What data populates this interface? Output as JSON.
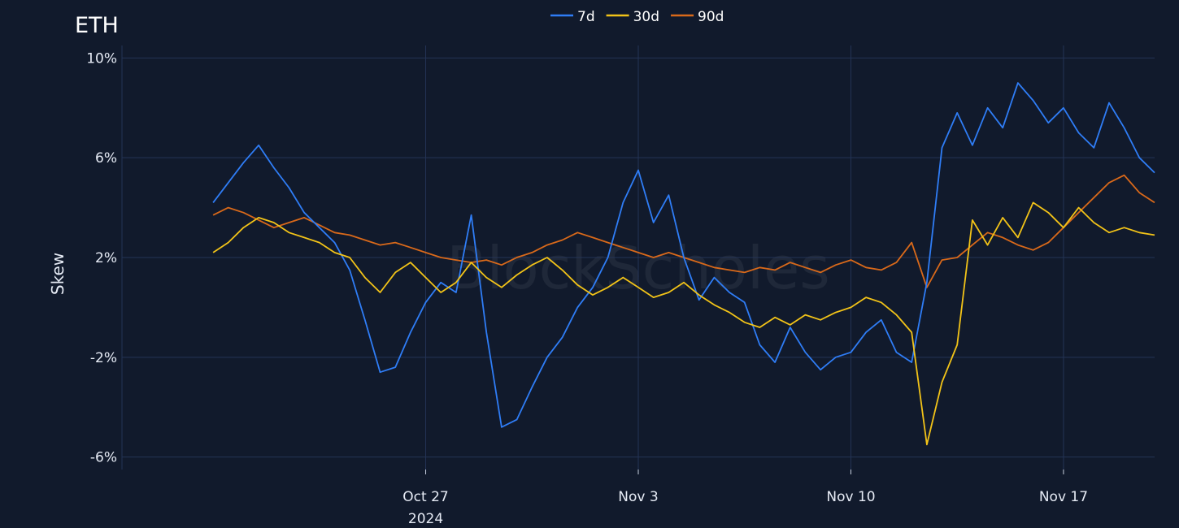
{
  "chart_data": {
    "type": "line",
    "title": "ETH",
    "ylabel": "Skew",
    "xlabel": "",
    "watermark": "BlockScholes",
    "x_range": [
      "2024-10-17",
      "2024-11-20"
    ],
    "ylim": [
      -6.5,
      10.5
    ],
    "y_ticks": [
      -6,
      -2,
      2,
      6,
      10
    ],
    "y_tick_labels": [
      "-6%",
      "-2%",
      "2%",
      "6%",
      "10%"
    ],
    "x_ticks": [
      "2024-10-27",
      "2024-11-03",
      "2024-11-10",
      "2024-11-17"
    ],
    "x_tick_labels": [
      "Oct 27",
      "Nov 3",
      "Nov 10",
      "Nov 17"
    ],
    "x_tick_year": "2024",
    "grid": true,
    "legend_position": "top-center",
    "colors": {
      "background": "#111a2c",
      "grid": "#243456"
    },
    "series": [
      {
        "name": "7d",
        "color": "#2f7df6",
        "points": [
          [
            "2024-10-20",
            4.2
          ],
          [
            "2024-10-20T12:00",
            5.0
          ],
          [
            "2024-10-21",
            5.8
          ],
          [
            "2024-10-21T12:00",
            6.5
          ],
          [
            "2024-10-22",
            5.6
          ],
          [
            "2024-10-22T12:00",
            4.8
          ],
          [
            "2024-10-23",
            3.8
          ],
          [
            "2024-10-23T12:00",
            3.2
          ],
          [
            "2024-10-24",
            2.6
          ],
          [
            "2024-10-24T12:00",
            1.5
          ],
          [
            "2024-10-25",
            -0.5
          ],
          [
            "2024-10-25T12:00",
            -2.6
          ],
          [
            "2024-10-26",
            -2.4
          ],
          [
            "2024-10-26T12:00",
            -1.0
          ],
          [
            "2024-10-27",
            0.2
          ],
          [
            "2024-10-27T12:00",
            1.0
          ],
          [
            "2024-10-28",
            0.6
          ],
          [
            "2024-10-28T12:00",
            3.7
          ],
          [
            "2024-10-29",
            -1.0
          ],
          [
            "2024-10-29T12:00",
            -4.8
          ],
          [
            "2024-10-30",
            -4.5
          ],
          [
            "2024-10-30T12:00",
            -3.2
          ],
          [
            "2024-10-31",
            -2.0
          ],
          [
            "2024-10-31T12:00",
            -1.2
          ],
          [
            "2024-11-01",
            0.0
          ],
          [
            "2024-11-01T12:00",
            0.8
          ],
          [
            "2024-11-02",
            2.0
          ],
          [
            "2024-11-02T12:00",
            4.2
          ],
          [
            "2024-11-03",
            5.5
          ],
          [
            "2024-11-03T12:00",
            3.4
          ],
          [
            "2024-11-04",
            4.5
          ],
          [
            "2024-11-04T12:00",
            2.0
          ],
          [
            "2024-11-05",
            0.3
          ],
          [
            "2024-11-05T12:00",
            1.2
          ],
          [
            "2024-11-06",
            0.6
          ],
          [
            "2024-11-06T12:00",
            0.2
          ],
          [
            "2024-11-07",
            -1.5
          ],
          [
            "2024-11-07T12:00",
            -2.2
          ],
          [
            "2024-11-08",
            -0.8
          ],
          [
            "2024-11-08T12:00",
            -1.8
          ],
          [
            "2024-11-09",
            -2.5
          ],
          [
            "2024-11-09T12:00",
            -2.0
          ],
          [
            "2024-11-10",
            -1.8
          ],
          [
            "2024-11-10T12:00",
            -1.0
          ],
          [
            "2024-11-11",
            -0.5
          ],
          [
            "2024-11-11T12:00",
            -1.8
          ],
          [
            "2024-11-12",
            -2.2
          ],
          [
            "2024-11-12T12:00",
            1.0
          ],
          [
            "2024-11-13",
            6.4
          ],
          [
            "2024-11-13T12:00",
            7.8
          ],
          [
            "2024-11-14",
            6.5
          ],
          [
            "2024-11-14T12:00",
            8.0
          ],
          [
            "2024-11-15",
            7.2
          ],
          [
            "2024-11-15T12:00",
            9.0
          ],
          [
            "2024-11-16",
            8.3
          ],
          [
            "2024-11-16T12:00",
            7.4
          ],
          [
            "2024-11-17",
            8.0
          ],
          [
            "2024-11-17T12:00",
            7.0
          ],
          [
            "2024-11-18",
            6.4
          ],
          [
            "2024-11-18T12:00",
            8.2
          ],
          [
            "2024-11-19",
            7.2
          ],
          [
            "2024-11-19T12:00",
            6.0
          ],
          [
            "2024-11-20",
            5.4
          ]
        ]
      },
      {
        "name": "30d",
        "color": "#f2c318",
        "points": [
          [
            "2024-10-20",
            2.2
          ],
          [
            "2024-10-20T12:00",
            2.6
          ],
          [
            "2024-10-21",
            3.2
          ],
          [
            "2024-10-21T12:00",
            3.6
          ],
          [
            "2024-10-22",
            3.4
          ],
          [
            "2024-10-22T12:00",
            3.0
          ],
          [
            "2024-10-23",
            2.8
          ],
          [
            "2024-10-23T12:00",
            2.6
          ],
          [
            "2024-10-24",
            2.2
          ],
          [
            "2024-10-24T12:00",
            2.0
          ],
          [
            "2024-10-25",
            1.2
          ],
          [
            "2024-10-25T12:00",
            0.6
          ],
          [
            "2024-10-26",
            1.4
          ],
          [
            "2024-10-26T12:00",
            1.8
          ],
          [
            "2024-10-27",
            1.2
          ],
          [
            "2024-10-27T12:00",
            0.6
          ],
          [
            "2024-10-28",
            1.0
          ],
          [
            "2024-10-28T12:00",
            1.8
          ],
          [
            "2024-10-29",
            1.2
          ],
          [
            "2024-10-29T12:00",
            0.8
          ],
          [
            "2024-10-30",
            1.3
          ],
          [
            "2024-10-30T12:00",
            1.7
          ],
          [
            "2024-10-31",
            2.0
          ],
          [
            "2024-10-31T12:00",
            1.5
          ],
          [
            "2024-11-01",
            0.9
          ],
          [
            "2024-11-01T12:00",
            0.5
          ],
          [
            "2024-11-02",
            0.8
          ],
          [
            "2024-11-02T12:00",
            1.2
          ],
          [
            "2024-11-03",
            0.8
          ],
          [
            "2024-11-03T12:00",
            0.4
          ],
          [
            "2024-11-04",
            0.6
          ],
          [
            "2024-11-04T12:00",
            1.0
          ],
          [
            "2024-11-05",
            0.5
          ],
          [
            "2024-11-05T12:00",
            0.1
          ],
          [
            "2024-11-06",
            -0.2
          ],
          [
            "2024-11-06T12:00",
            -0.6
          ],
          [
            "2024-11-07",
            -0.8
          ],
          [
            "2024-11-07T12:00",
            -0.4
          ],
          [
            "2024-11-08",
            -0.7
          ],
          [
            "2024-11-08T12:00",
            -0.3
          ],
          [
            "2024-11-09",
            -0.5
          ],
          [
            "2024-11-09T12:00",
            -0.2
          ],
          [
            "2024-11-10",
            0.0
          ],
          [
            "2024-11-10T12:00",
            0.4
          ],
          [
            "2024-11-11",
            0.2
          ],
          [
            "2024-11-11T12:00",
            -0.3
          ],
          [
            "2024-11-12",
            -1.0
          ],
          [
            "2024-11-12T12:00",
            -5.5
          ],
          [
            "2024-11-13",
            -3.0
          ],
          [
            "2024-11-13T12:00",
            -1.5
          ],
          [
            "2024-11-14",
            3.5
          ],
          [
            "2024-11-14T12:00",
            2.5
          ],
          [
            "2024-11-15",
            3.6
          ],
          [
            "2024-11-15T12:00",
            2.8
          ],
          [
            "2024-11-16",
            4.2
          ],
          [
            "2024-11-16T12:00",
            3.8
          ],
          [
            "2024-11-17",
            3.2
          ],
          [
            "2024-11-17T12:00",
            4.0
          ],
          [
            "2024-11-18",
            3.4
          ],
          [
            "2024-11-18T12:00",
            3.0
          ],
          [
            "2024-11-19",
            3.2
          ],
          [
            "2024-11-19T12:00",
            3.0
          ],
          [
            "2024-11-20",
            2.9
          ]
        ]
      },
      {
        "name": "90d",
        "color": "#d9691a",
        "points": [
          [
            "2024-10-20",
            3.7
          ],
          [
            "2024-10-20T12:00",
            4.0
          ],
          [
            "2024-10-21",
            3.8
          ],
          [
            "2024-10-21T12:00",
            3.5
          ],
          [
            "2024-10-22",
            3.2
          ],
          [
            "2024-10-22T12:00",
            3.4
          ],
          [
            "2024-10-23",
            3.6
          ],
          [
            "2024-10-23T12:00",
            3.3
          ],
          [
            "2024-10-24",
            3.0
          ],
          [
            "2024-10-24T12:00",
            2.9
          ],
          [
            "2024-10-25",
            2.7
          ],
          [
            "2024-10-25T12:00",
            2.5
          ],
          [
            "2024-10-26",
            2.6
          ],
          [
            "2024-10-26T12:00",
            2.4
          ],
          [
            "2024-10-27",
            2.2
          ],
          [
            "2024-10-27T12:00",
            2.0
          ],
          [
            "2024-10-28",
            1.9
          ],
          [
            "2024-10-28T12:00",
            1.8
          ],
          [
            "2024-10-29",
            1.9
          ],
          [
            "2024-10-29T12:00",
            1.7
          ],
          [
            "2024-10-30",
            2.0
          ],
          [
            "2024-10-30T12:00",
            2.2
          ],
          [
            "2024-10-31",
            2.5
          ],
          [
            "2024-10-31T12:00",
            2.7
          ],
          [
            "2024-11-01",
            3.0
          ],
          [
            "2024-11-01T12:00",
            2.8
          ],
          [
            "2024-11-02",
            2.6
          ],
          [
            "2024-11-02T12:00",
            2.4
          ],
          [
            "2024-11-03",
            2.2
          ],
          [
            "2024-11-03T12:00",
            2.0
          ],
          [
            "2024-11-04",
            2.2
          ],
          [
            "2024-11-04T12:00",
            2.0
          ],
          [
            "2024-11-05",
            1.8
          ],
          [
            "2024-11-05T12:00",
            1.6
          ],
          [
            "2024-11-06",
            1.5
          ],
          [
            "2024-11-06T12:00",
            1.4
          ],
          [
            "2024-11-07",
            1.6
          ],
          [
            "2024-11-07T12:00",
            1.5
          ],
          [
            "2024-11-08",
            1.8
          ],
          [
            "2024-11-08T12:00",
            1.6
          ],
          [
            "2024-11-09",
            1.4
          ],
          [
            "2024-11-09T12:00",
            1.7
          ],
          [
            "2024-11-10",
            1.9
          ],
          [
            "2024-11-10T12:00",
            1.6
          ],
          [
            "2024-11-11",
            1.5
          ],
          [
            "2024-11-11T12:00",
            1.8
          ],
          [
            "2024-11-12",
            2.6
          ],
          [
            "2024-11-12T12:00",
            0.8
          ],
          [
            "2024-11-13",
            1.9
          ],
          [
            "2024-11-13T12:00",
            2.0
          ],
          [
            "2024-11-14",
            2.5
          ],
          [
            "2024-11-14T12:00",
            3.0
          ],
          [
            "2024-11-15",
            2.8
          ],
          [
            "2024-11-15T12:00",
            2.5
          ],
          [
            "2024-11-16",
            2.3
          ],
          [
            "2024-11-16T12:00",
            2.6
          ],
          [
            "2024-11-17",
            3.2
          ],
          [
            "2024-11-17T12:00",
            3.8
          ],
          [
            "2024-11-18",
            4.4
          ],
          [
            "2024-11-18T12:00",
            5.0
          ],
          [
            "2024-11-19",
            5.3
          ],
          [
            "2024-11-19T12:00",
            4.6
          ],
          [
            "2024-11-20",
            4.2
          ]
        ]
      }
    ]
  }
}
